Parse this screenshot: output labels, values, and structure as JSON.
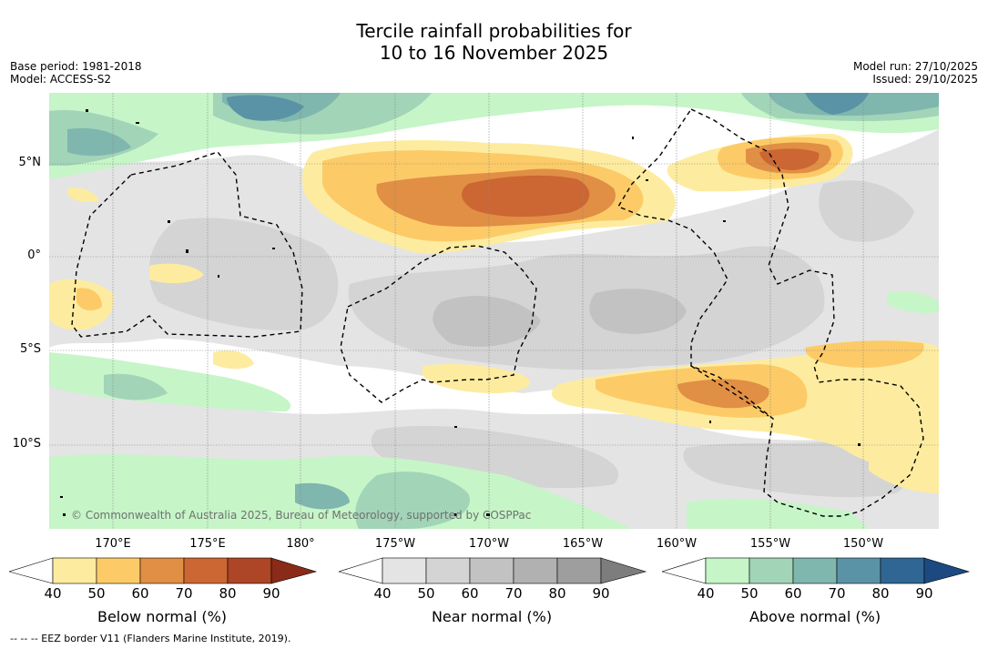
{
  "title_line1": "Tercile rainfall probabilities for",
  "title_line2": "10 to 16 November 2025",
  "base_period": "Base period: 1981-2018",
  "model": "Model: ACCESS-S2",
  "model_run": "Model run: 27/10/2025",
  "issued": "Issued: 29/10/2025",
  "lat_labels": [
    "5°N",
    "0°",
    "5°S",
    "10°S"
  ],
  "lon_labels": [
    "170°E",
    "175°E",
    "180°",
    "175°W",
    "170°W",
    "165°W",
    "160°W",
    "155°W",
    "150°W"
  ],
  "copyright": "© Commonwealth of Australia 2025, Bureau of Meteorology, supported by COSPPac",
  "footer": "--  --  -- EEZ border V11 (Flanders Marine Institute, 2019).",
  "colorbars": [
    {
      "label": "Below normal (%)",
      "ticks": [
        "40",
        "50",
        "60",
        "70",
        "80",
        "90"
      ],
      "colors": [
        "#ffffff",
        "#fdeca0",
        "#fccb67",
        "#e08f45",
        "#cc6632",
        "#ac4626",
        "#8a2a18"
      ]
    },
    {
      "label": "Near normal (%)",
      "ticks": [
        "40",
        "50",
        "60",
        "70",
        "80",
        "90"
      ],
      "colors": [
        "#ffffff",
        "#e4e4e4",
        "#d4d4d4",
        "#c2c2c2",
        "#b1b1b1",
        "#9e9e9e",
        "#7d7d7d"
      ]
    },
    {
      "label": "Above normal (%)",
      "ticks": [
        "40",
        "50",
        "60",
        "70",
        "80",
        "90"
      ],
      "colors": [
        "#ffffff",
        "#c6f5c8",
        "#a2d4b8",
        "#7fb6ae",
        "#5a93a5",
        "#2f6693",
        "#1c4a80"
      ]
    }
  ]
}
